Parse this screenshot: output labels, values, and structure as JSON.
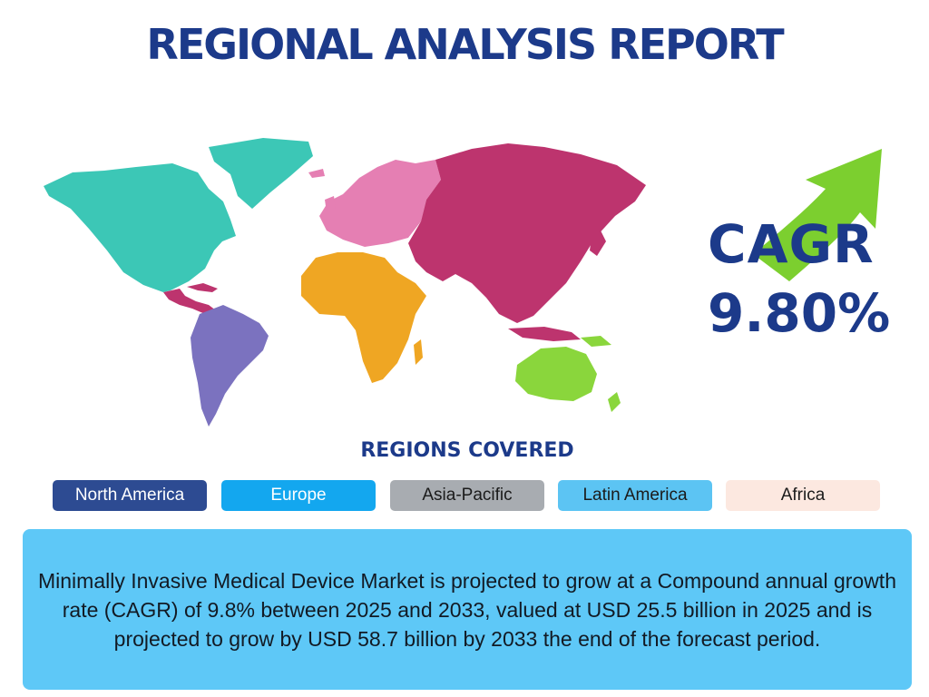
{
  "header": {
    "title": "REGIONAL ANALYSIS REPORT"
  },
  "map": {
    "regions": [
      {
        "name": "north-america",
        "color": "#3cc7b6"
      },
      {
        "name": "south-america",
        "color": "#7b72bf"
      },
      {
        "name": "europe",
        "color": "#e57fb3"
      },
      {
        "name": "africa",
        "color": "#efa623"
      },
      {
        "name": "asia",
        "color": "#bd346e"
      },
      {
        "name": "oceania",
        "color": "#8ad63c"
      }
    ]
  },
  "cagr": {
    "label": "CAGR",
    "value": "9.80%",
    "arrow_color": "#7ccf2f",
    "text_color": "#1c3a8a"
  },
  "regions_covered": {
    "heading": "REGIONS COVERED",
    "items": [
      {
        "label": "North America",
        "color": "#2d4b92"
      },
      {
        "label": "Europe",
        "color": "#13a7ef"
      },
      {
        "label": "Asia-Pacific",
        "color": "#a8acb1"
      },
      {
        "label": "Latin America",
        "color": "#5cc4f3"
      },
      {
        "label": "Africa",
        "color": "#fce8e0"
      }
    ]
  },
  "summary": {
    "text": "Minimally Invasive Medical Device Market is projected to grow at a Compound annual growth rate (CAGR) of 9.8% between 2025 and 2033, valued at USD 25.5 billion in 2025 and is projected to grow by USD 58.7 billion by 2033 the end of the forecast period.",
    "background": "#5ec8f7"
  }
}
